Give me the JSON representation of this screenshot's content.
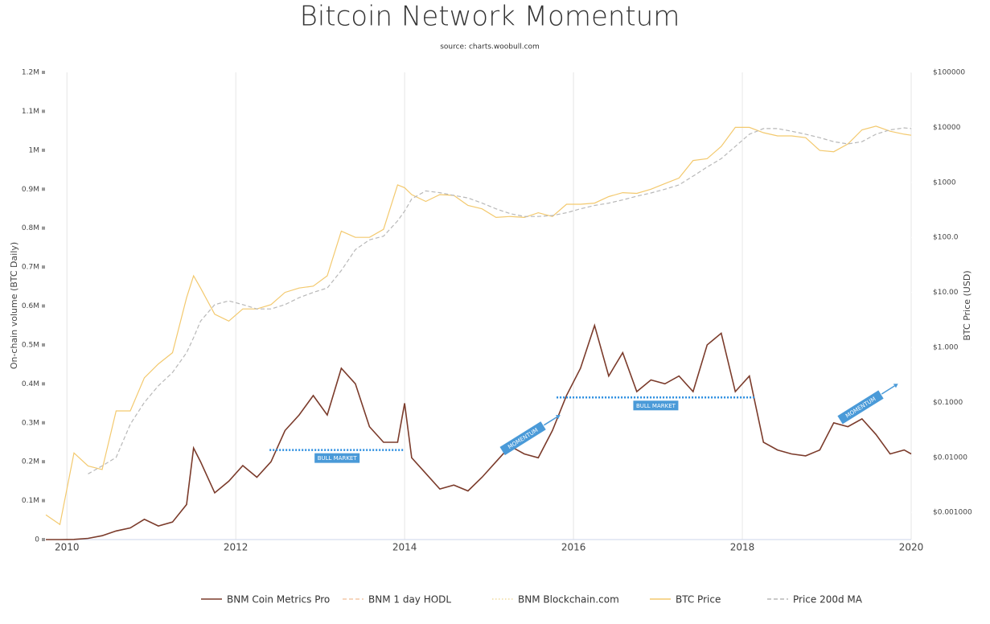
{
  "chart_data": {
    "type": "line",
    "title": "Bitcoin Network Momentum",
    "subtitle": "source: charts.woobull.com",
    "ylabel": "On-chain volume (BTC Daily)",
    "y2label": "BTC Price (USD)",
    "x": [
      2009.75,
      2009.917,
      2010.083,
      2010.25,
      2010.417,
      2010.583,
      2010.75,
      2010.917,
      2011.083,
      2011.25,
      2011.417,
      2011.5,
      2011.583,
      2011.75,
      2011.917,
      2012.083,
      2012.25,
      2012.417,
      2012.583,
      2012.75,
      2012.917,
      2013.083,
      2013.25,
      2013.417,
      2013.583,
      2013.75,
      2013.917,
      2014.0,
      2014.083,
      2014.25,
      2014.417,
      2014.583,
      2014.75,
      2014.917,
      2015.083,
      2015.25,
      2015.417,
      2015.583,
      2015.75,
      2015.917,
      2016.083,
      2016.25,
      2016.417,
      2016.583,
      2016.75,
      2016.917,
      2017.083,
      2017.25,
      2017.417,
      2017.583,
      2017.75,
      2017.917,
      2018.083,
      2018.25,
      2018.417,
      2018.583,
      2018.75,
      2018.917,
      2019.083,
      2019.25,
      2019.417,
      2019.583,
      2019.75,
      2019.917,
      2020.0
    ],
    "xlim": [
      2009.75,
      2020
    ],
    "xticks": [
      2010,
      2012,
      2014,
      2016,
      2018,
      2020
    ],
    "ylim": [
      0,
      1200000
    ],
    "yticks": [
      0,
      {
        "value": 100000,
        "label": "0.1M"
      },
      {
        "value": 200000,
        "label": "0.2M"
      },
      {
        "value": 300000,
        "label": "0.3M"
      },
      {
        "value": 400000,
        "label": "0.4M"
      },
      {
        "value": 500000,
        "label": "0.5M"
      },
      {
        "value": 600000,
        "label": "0.6M"
      },
      {
        "value": 700000,
        "label": "0.7M"
      },
      {
        "value": 800000,
        "label": "0.8M"
      },
      {
        "value": 900000,
        "label": "0.9M"
      },
      {
        "value": 1000000,
        "label": "1M"
      },
      {
        "value": 1100000,
        "label": "1.1M"
      },
      {
        "value": 1200000,
        "label": "1.2M"
      }
    ],
    "y2lim": [
      0.00032,
      100000
    ],
    "y2log": true,
    "y2ticks": [
      {
        "value": 100000,
        "label": "$100000"
      },
      {
        "value": 10000,
        "label": "$10000"
      },
      {
        "value": 1000,
        "label": "$1000"
      },
      {
        "value": 100,
        "label": "$100.0"
      },
      {
        "value": 10,
        "label": "$10.00"
      },
      {
        "value": 1,
        "label": "$1.000"
      },
      {
        "value": 0.1,
        "label": "$0.1000"
      },
      {
        "value": 0.01,
        "label": "$0.01000"
      },
      {
        "value": 0.001,
        "label": "$0.001000"
      }
    ],
    "xgrid": true,
    "series": [
      {
        "name": "BNM Coin Metrics Pro",
        "color": "#7b3b2b",
        "dash": "solid",
        "axis": "y",
        "values": [
          0,
          0,
          500,
          3000,
          10000,
          22000,
          30000,
          52000,
          35000,
          45000,
          90000,
          235000,
          200000,
          120000,
          150000,
          190000,
          160000,
          200000,
          280000,
          320000,
          370000,
          320000,
          440000,
          400000,
          290000,
          250000,
          250000,
          350000,
          210000,
          170000,
          130000,
          140000,
          125000,
          160000,
          200000,
          240000,
          220000,
          210000,
          280000,
          370000,
          440000,
          550000,
          420000,
          480000,
          380000,
          410000,
          400000,
          420000,
          380000,
          500000,
          530000,
          380000,
          420000,
          250000,
          230000,
          220000,
          215000,
          230000,
          300000,
          290000,
          310000,
          270000,
          220000,
          230000,
          220000
        ]
      },
      {
        "name": "BNM 1 day HODL",
        "color": "#f3c9a8",
        "dash": "dashed",
        "axis": "y",
        "values": [
          null,
          null,
          null,
          null,
          null,
          null,
          null,
          null,
          null,
          null,
          null,
          null,
          null,
          null,
          null,
          null,
          null,
          null,
          null,
          null,
          null,
          null,
          null,
          null,
          null,
          null,
          null,
          null,
          null,
          null,
          null,
          null,
          null,
          null,
          null,
          null,
          null,
          null,
          null,
          null,
          null,
          null,
          null,
          null,
          null,
          null,
          null,
          null,
          null,
          null,
          null,
          null,
          null,
          null,
          null,
          null,
          null,
          null,
          null,
          null,
          null,
          null,
          null,
          null,
          null
        ]
      },
      {
        "name": "BNM Blockchain.com",
        "color": "#f0dca0",
        "dash": "dotted",
        "axis": "y",
        "values": [
          null,
          null,
          null,
          null,
          null,
          null,
          null,
          null,
          null,
          null,
          null,
          null,
          null,
          null,
          null,
          null,
          null,
          null,
          null,
          null,
          null,
          null,
          null,
          null,
          null,
          null,
          null,
          null,
          null,
          null,
          null,
          null,
          null,
          null,
          null,
          null,
          null,
          null,
          null,
          null,
          null,
          null,
          null,
          null,
          null,
          null,
          null,
          null,
          null,
          null,
          null,
          null,
          null,
          null,
          null,
          null,
          null,
          null,
          null,
          null,
          null,
          null,
          null,
          null,
          null
        ]
      },
      {
        "name": "BTC Price",
        "color": "#f3c96e",
        "dash": "solid",
        "axis": "y2",
        "values": [
          0.0009,
          0.0006,
          0.012,
          0.007,
          0.006,
          0.07,
          0.07,
          0.28,
          0.5,
          0.8,
          8,
          20,
          12,
          4,
          3,
          5,
          5,
          6,
          10,
          12,
          13,
          20,
          130,
          100,
          100,
          140,
          900,
          800,
          600,
          450,
          600,
          580,
          380,
          330,
          230,
          240,
          230,
          280,
          240,
          400,
          400,
          420,
          550,
          650,
          630,
          750,
          950,
          1200,
          2500,
          2700,
          4500,
          10000,
          10000,
          8000,
          7000,
          7000,
          6500,
          3800,
          3600,
          5000,
          9000,
          10500,
          8500,
          7500,
          7200
        ]
      },
      {
        "name": "Price 200d MA",
        "color": "#b8b8b8",
        "dash": "dashed",
        "axis": "y2",
        "values": [
          null,
          null,
          null,
          0.005,
          0.007,
          0.01,
          0.04,
          0.1,
          0.2,
          0.35,
          0.8,
          1.5,
          3,
          6,
          7,
          6,
          5,
          5,
          6,
          8,
          10,
          12,
          25,
          60,
          90,
          105,
          200,
          300,
          500,
          700,
          650,
          580,
          520,
          420,
          330,
          270,
          240,
          240,
          250,
          280,
          330,
          380,
          420,
          480,
          560,
          640,
          750,
          900,
          1300,
          1900,
          2700,
          4500,
          7500,
          9500,
          9500,
          8500,
          7500,
          6500,
          5500,
          5000,
          5500,
          7500,
          9000,
          9800,
          9500
        ]
      }
    ],
    "annotations": [
      {
        "kind": "level",
        "text": "BULL MARKET",
        "x": [
          2012.4,
          2014.0
        ],
        "y": 230000
      },
      {
        "kind": "level",
        "text": "BULL MARKET",
        "x": [
          2015.8,
          2018.15
        ],
        "y": 365000
      },
      {
        "kind": "arrow",
        "text": "MOMENTUM",
        "x": 2015.4,
        "y": 260000
      },
      {
        "kind": "arrow",
        "text": "MOMENTUM",
        "x": 2019.4,
        "y": 340000
      }
    ]
  }
}
